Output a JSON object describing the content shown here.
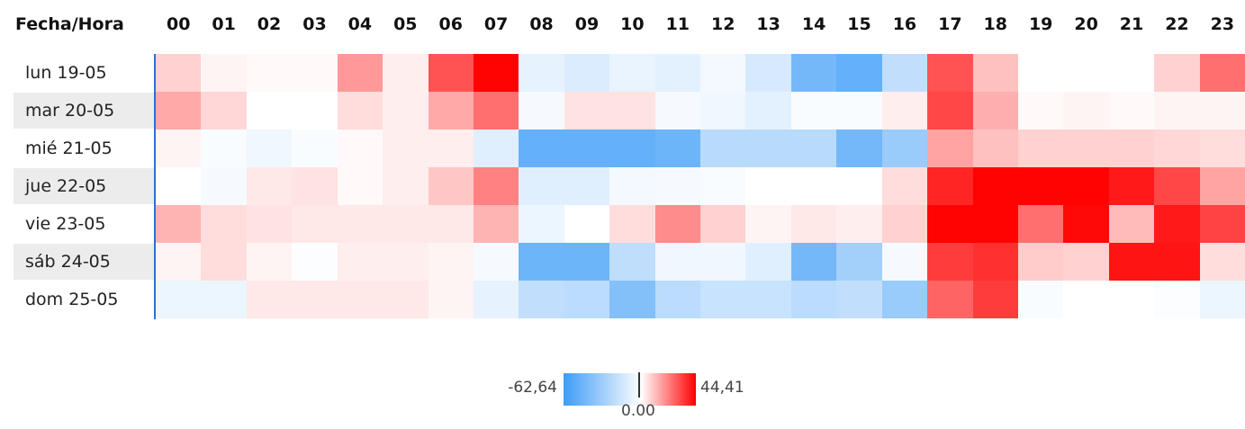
{
  "chart_data": {
    "type": "heatmap",
    "corner_label": "Fecha/Hora",
    "columns": [
      "00",
      "01",
      "02",
      "03",
      "04",
      "05",
      "06",
      "07",
      "08",
      "09",
      "10",
      "11",
      "12",
      "13",
      "14",
      "15",
      "16",
      "17",
      "18",
      "19",
      "20",
      "21",
      "22",
      "23"
    ],
    "rows": [
      {
        "label": "lun 19-05",
        "values": [
          8,
          2,
          1,
          1,
          18,
          3,
          30,
          44,
          -8,
          -12,
          -7,
          -9,
          -4,
          -13,
          -45,
          -50,
          -20,
          30,
          11,
          0,
          0,
          0,
          8,
          25
        ]
      },
      {
        "label": "mar 20-05",
        "values": [
          15,
          7,
          0,
          0,
          6,
          3,
          15,
          25,
          -3,
          5,
          5,
          -3,
          -5,
          -9,
          -2,
          -2,
          3,
          32,
          14,
          1,
          2,
          1,
          2,
          2
        ]
      },
      {
        "label": "mié 21-05",
        "values": [
          2,
          -2,
          -5,
          -2,
          1,
          3,
          3,
          -10,
          -50,
          -50,
          -50,
          -47,
          -23,
          -23,
          -23,
          -45,
          -33,
          16,
          11,
          8,
          8,
          8,
          7,
          6
        ]
      },
      {
        "label": "jue 22-05",
        "values": [
          0,
          -3,
          4,
          5,
          1,
          3,
          10,
          22,
          -10,
          -10,
          -4,
          -3,
          -2,
          0,
          0,
          0,
          6,
          38,
          44,
          44,
          44,
          40,
          32,
          16
        ]
      },
      {
        "label": "vie 23-05",
        "values": [
          13,
          6,
          5,
          4,
          4,
          4,
          4,
          13,
          -6,
          0,
          6,
          20,
          8,
          2,
          4,
          3,
          8,
          44,
          44,
          25,
          43,
          12,
          40,
          33
        ]
      },
      {
        "label": "sáb 24-05",
        "values": [
          2,
          6,
          2,
          -1,
          3,
          3,
          2,
          -3,
          -47,
          -47,
          -21,
          -5,
          -5,
          -10,
          -45,
          -30,
          -3,
          34,
          36,
          9,
          8,
          41,
          41,
          6
        ]
      },
      {
        "label": "dom 25-05",
        "values": [
          -6,
          -6,
          4,
          4,
          4,
          4,
          2,
          -8,
          -20,
          -22,
          -40,
          -22,
          -18,
          -18,
          -22,
          -20,
          -33,
          27,
          34,
          -2,
          0,
          0,
          -1,
          -6
        ]
      }
    ],
    "scale": {
      "min": -62.64,
      "max": 44.41,
      "center": 0,
      "min_label": "-62,64",
      "max_label": "44,41",
      "center_label": "0.00",
      "negative_color": "#3d9cf7",
      "zero_color": "#ffffff",
      "positive_color": "#ff0000"
    }
  }
}
